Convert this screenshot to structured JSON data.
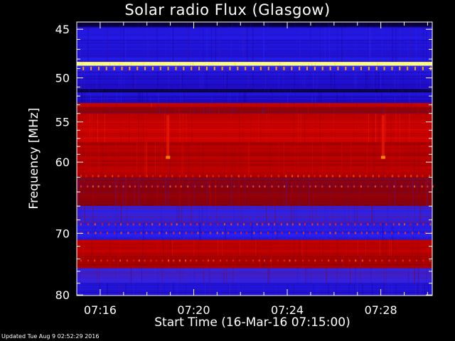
{
  "chart_data": {
    "type": "heatmap",
    "title": "Solar radio Flux (Glasgow)",
    "xlabel": "Start Time (16-Mar-16 07:15:00)",
    "ylabel": "Frequency [MHz]",
    "x_ticks": [
      "07:16",
      "07:20",
      "07:24",
      "07:28"
    ],
    "x_tick_minutes": [
      1,
      5,
      9,
      13
    ],
    "xlim_minutes": [
      0,
      15.2
    ],
    "y_ticks": [
      45,
      50,
      55,
      60,
      70,
      80
    ],
    "ylim": [
      44.3,
      80.1
    ],
    "y_scale": "log",
    "colormap": [
      "#000000",
      "#1a00aa",
      "#2828ff",
      "#8c0000",
      "#d20000",
      "#ff3200",
      "#ffa000",
      "#ffff80"
    ],
    "bands": [
      {
        "from": 44.3,
        "to": 44.8,
        "level": 0.05
      },
      {
        "from": 44.8,
        "to": 48.3,
        "level": 0.22
      },
      {
        "from": 48.3,
        "to": 48.7,
        "level": 1.0
      },
      {
        "from": 48.7,
        "to": 49.3,
        "level": 0.3
      },
      {
        "from": 49.3,
        "to": 51.2,
        "level": 0.2
      },
      {
        "from": 51.2,
        "to": 51.6,
        "level": 0.06
      },
      {
        "from": 51.6,
        "to": 52.8,
        "level": 0.2
      },
      {
        "from": 52.8,
        "to": 53.3,
        "level": 0.52
      },
      {
        "from": 53.3,
        "to": 54.0,
        "level": 0.42
      },
      {
        "from": 54.0,
        "to": 57.5,
        "level": 0.55
      },
      {
        "from": 57.5,
        "to": 62.0,
        "level": 0.5
      },
      {
        "from": 62.0,
        "to": 66.0,
        "level": 0.42
      },
      {
        "from": 66.0,
        "to": 68.5,
        "level": 0.3
      },
      {
        "from": 68.5,
        "to": 71.0,
        "level": 0.25
      },
      {
        "from": 71.0,
        "to": 73.5,
        "level": 0.52
      },
      {
        "from": 73.5,
        "to": 75.5,
        "level": 0.47
      },
      {
        "from": 75.5,
        "to": 78.0,
        "level": 0.3
      },
      {
        "from": 78.0,
        "to": 80.1,
        "level": 0.22
      }
    ],
    "bursts_minutes": [
      3.9,
      13.1
    ]
  },
  "footer": "Updated Tue Aug  9 02:52:29 2016"
}
